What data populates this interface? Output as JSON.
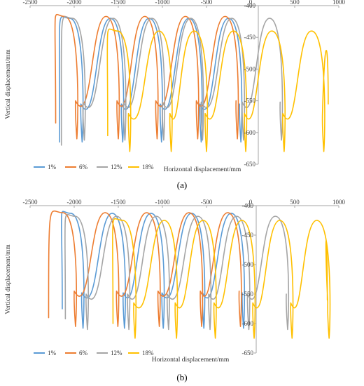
{
  "colors": {
    "s1": "#5B9BD5",
    "s2": "#ED7D31",
    "s3": "#A5A5A5",
    "s4": "#FFC000",
    "axis": "#a6a6a6"
  },
  "chart_data": [
    {
      "type": "line",
      "panel_label": "(a)",
      "xlabel": "Horizontal displacement/mm",
      "ylabel": "Vertical displacement/mm",
      "xlim": [
        -2500,
        1000
      ],
      "ylim": [
        -650,
        -400
      ],
      "x_ticks": [
        "-2500",
        "-2000",
        "-1500",
        "-1000",
        "-500",
        "0",
        "500",
        "1000"
      ],
      "y_ticks": [
        "-400",
        "-450",
        "-500",
        "-550",
        "-600",
        "-650"
      ],
      "legend": {
        "position": "bottom-left",
        "entries": [
          "1%",
          "6%",
          "12%",
          "18%"
        ]
      },
      "series": [
        {
          "name": "1%",
          "color_key": "s1",
          "loop_centers_x": [
            -2050,
            -1590,
            -1150,
            -700,
            -250
          ],
          "top_y": -420,
          "bottom_y": -615,
          "half_width": 150,
          "start_x": -2165,
          "start_y": -615
        },
        {
          "name": "6%",
          "color_key": "s2",
          "loop_centers_x": [
            -2110,
            -1640,
            -1200,
            -740,
            -290
          ],
          "top_y": -417,
          "bottom_y": -610,
          "half_width": 150,
          "start_x": -2210,
          "start_y": -585
        },
        {
          "name": "12%",
          "color_key": "s3",
          "loop_centers_x": [
            -2020,
            -1560,
            -1120,
            -680,
            -215,
            215
          ],
          "top_y": -420,
          "bottom_y": -612,
          "half_width": 145,
          "start_x": -2145,
          "start_y": -620
        },
        {
          "name": "18%",
          "color_key": "s4",
          "loop_centers_x": [
            -1510,
            -1040,
            -640,
            -195,
            240,
            690
          ],
          "top_y": -440,
          "bottom_y": -630,
          "half_width": 150,
          "start_x": -1620,
          "start_y": -605,
          "end_x": 880,
          "end_y": -555
        }
      ]
    },
    {
      "type": "line",
      "panel_label": "(b)",
      "xlabel": "Horizontal displacement/mm",
      "ylabel": "Vertical displacement/mm",
      "xlim": [
        -2500,
        1000
      ],
      "ylim": [
        -650,
        -400
      ],
      "x_ticks": [
        "-2500",
        "-2000",
        "-1500",
        "-1000",
        "-500",
        "0",
        "500",
        "1000"
      ],
      "y_ticks": [
        "-400",
        "-450",
        "-500",
        "-550",
        "-600",
        "-650"
      ],
      "legend": {
        "position": "bottom-left",
        "entries": [
          "1%",
          "6%",
          "12%",
          "18%"
        ]
      },
      "series": [
        {
          "name": "1%",
          "color_key": "s1",
          "loop_centers_x": [
            -2040,
            -1570,
            -1130,
            -670,
            -220
          ],
          "top_y": -413,
          "bottom_y": -608,
          "half_width": 150,
          "start_x": -2135,
          "start_y": -575
        },
        {
          "name": "6%",
          "color_key": "s2",
          "loop_centers_x": [
            -2130,
            -1650,
            -1180,
            -700,
            -260
          ],
          "top_y": -412,
          "bottom_y": -605,
          "half_width": 155,
          "start_x": -2290,
          "start_y": -590
        },
        {
          "name": "12%",
          "color_key": "s3",
          "loop_centers_x": [
            -1990,
            -1520,
            -1070,
            -600,
            -160,
            280
          ],
          "top_y": -418,
          "bottom_y": -610,
          "half_width": 150,
          "start_x": -2100,
          "start_y": -592
        },
        {
          "name": "18%",
          "color_key": "s4",
          "loop_centers_x": [
            -1450,
            -980,
            -540,
            -100,
            330,
            750
          ],
          "top_y": -425,
          "bottom_y": -625,
          "half_width": 150,
          "start_x": -1560,
          "start_y": -600,
          "end_x": 870,
          "end_y": -560
        }
      ]
    }
  ]
}
